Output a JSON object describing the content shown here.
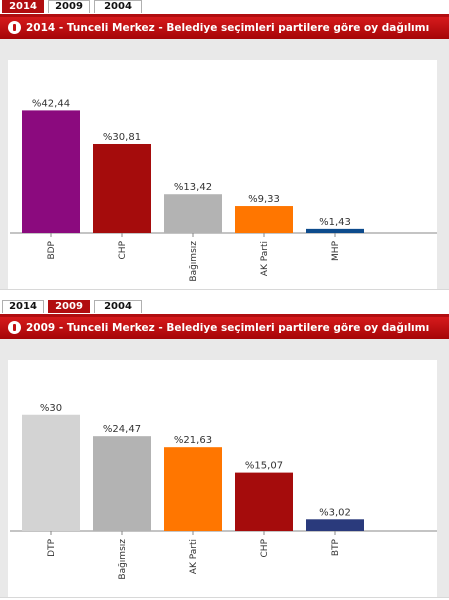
{
  "tabs_2014": {
    "items": [
      "2014",
      "2009",
      "2004"
    ],
    "active": "2014"
  },
  "tabs_2009": {
    "items": [
      "2014",
      "2009",
      "2004"
    ],
    "active": "2009"
  },
  "chart_data": [
    {
      "type": "bar",
      "title": "2014 - Tunceli Merkez - Belediye seçimleri partilere göre oy dağılımı",
      "categories": [
        "BDP",
        "CHP",
        "Bağımsız",
        "AK Parti",
        "MHP"
      ],
      "values": [
        42.44,
        30.81,
        13.42,
        9.33,
        1.43
      ],
      "value_labels": [
        "%42,44",
        "%30,81",
        "%13,42",
        "%9,33",
        "%1,43"
      ],
      "colors": [
        "#8b0a7e",
        "#a50c0c",
        "#b3b3b3",
        "#ff7600",
        "#0d4b8c"
      ],
      "xlabel": "",
      "ylabel": "",
      "ylim": [
        0,
        45
      ],
      "grid": false
    },
    {
      "type": "bar",
      "title": "2009 - Tunceli Merkez - Belediye seçimleri partilere göre oy dağılımı",
      "categories": [
        "DTP",
        "Bağımsız",
        "AK Parti",
        "CHP",
        "BTP"
      ],
      "values": [
        30,
        24.47,
        21.63,
        15.07,
        3.02
      ],
      "value_labels": [
        "%30",
        "%24,47",
        "%21,63",
        "%15,07",
        "%3,02"
      ],
      "colors": [
        "#d3d3d3",
        "#b3b3b3",
        "#ff7600",
        "#a50c0c",
        "#2a3a7c"
      ],
      "xlabel": "",
      "ylabel": "",
      "ylim": [
        0,
        32
      ],
      "grid": false
    }
  ]
}
